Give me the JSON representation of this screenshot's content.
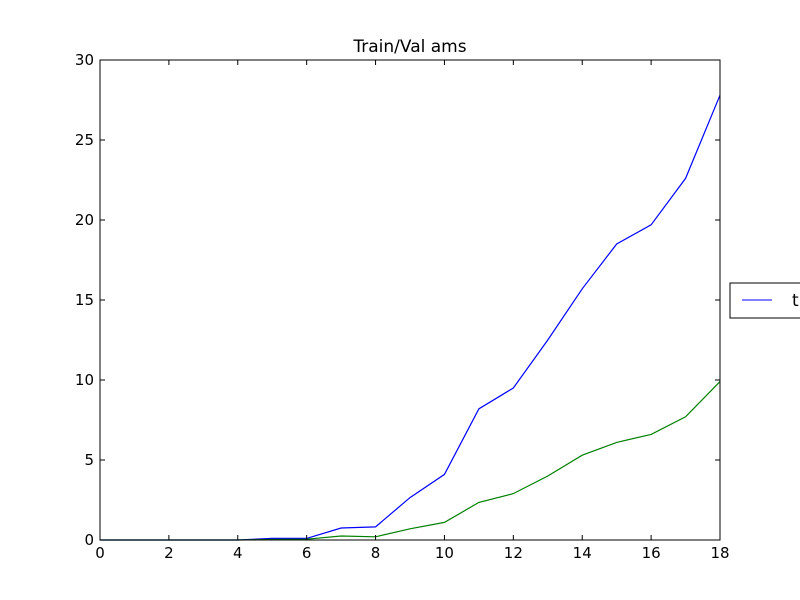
{
  "chart_data": {
    "type": "line",
    "title": "Train/Val ams",
    "xlabel": "",
    "ylabel": "",
    "xlim": [
      0,
      18
    ],
    "ylim": [
      0,
      30
    ],
    "xticks": [
      0,
      2,
      4,
      6,
      8,
      10,
      12,
      14,
      16,
      18
    ],
    "yticks": [
      0,
      5,
      10,
      15,
      20,
      25,
      30
    ],
    "grid": false,
    "legend_position": "right",
    "legend_visible_text": "t",
    "series": [
      {
        "color": "#0000ff",
        "x": [
          0,
          1,
          2,
          3,
          4,
          5,
          6,
          7,
          8,
          9,
          10,
          11,
          12,
          13,
          14,
          15,
          16,
          17,
          18
        ],
        "y": [
          0,
          0,
          0,
          0,
          0,
          0.1,
          0.1,
          0.75,
          0.82,
          2.65,
          4.1,
          8.2,
          9.5,
          12.5,
          15.7,
          18.5,
          19.7,
          22.6,
          27.8
        ]
      },
      {
        "color": "#008000",
        "x": [
          0,
          1,
          2,
          3,
          4,
          5,
          6,
          7,
          8,
          9,
          10,
          11,
          12,
          13,
          14,
          15,
          16,
          17,
          18
        ],
        "y": [
          0,
          0,
          0,
          0,
          0,
          0.03,
          0.05,
          0.25,
          0.2,
          0.7,
          1.1,
          2.35,
          2.9,
          4.0,
          5.3,
          6.1,
          6.6,
          7.7,
          9.9
        ]
      }
    ]
  }
}
